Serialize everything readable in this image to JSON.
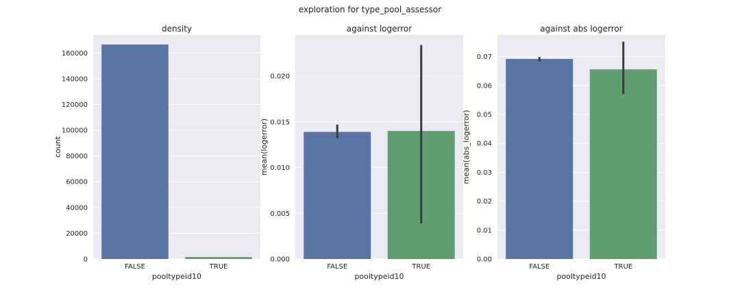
{
  "figure": {
    "suptitle": "exploration for type_pool_assessor"
  },
  "colors": {
    "background": "#eaeaf2",
    "grid": "#ffffff",
    "error_bar": "#3a3a3a",
    "text": "#222222"
  },
  "chart_data": [
    {
      "type": "bar",
      "title": "density",
      "xlabel": "pooltypeid10",
      "ylabel": "count",
      "categories": [
        "FALSE",
        "TRUE"
      ],
      "values": [
        166600,
        1500
      ],
      "colors": [
        "#5875a4",
        "#5f9e6e"
      ],
      "ylim": [
        0,
        174000
      ],
      "yticks": [
        0,
        20000,
        40000,
        60000,
        80000,
        100000,
        120000,
        140000,
        160000
      ],
      "ytick_labels": [
        "0",
        "20000",
        "40000",
        "60000",
        "80000",
        "100000",
        "120000",
        "140000",
        "160000"
      ],
      "grid": true
    },
    {
      "type": "bar",
      "title": "against logerror",
      "xlabel": "pooltypeid10",
      "ylabel": "mean(logerror)",
      "categories": [
        "FALSE",
        "TRUE"
      ],
      "values": [
        0.0139,
        0.014
      ],
      "error_low": [
        0.0132,
        0.0039
      ],
      "error_high": [
        0.0147,
        0.0234
      ],
      "colors": [
        "#5875a4",
        "#5f9e6e"
      ],
      "ylim": [
        0,
        0.0245
      ],
      "yticks": [
        0,
        0.005,
        0.01,
        0.015,
        0.02
      ],
      "ytick_labels": [
        "0.000",
        "0.005",
        "0.010",
        "0.015",
        "0.020"
      ],
      "grid": true
    },
    {
      "type": "bar",
      "title": "against abs logerror",
      "xlabel": "pooltypeid10",
      "ylabel": "mean(abs_logerror)",
      "categories": [
        "FALSE",
        "TRUE"
      ],
      "values": [
        0.0692,
        0.0656
      ],
      "error_low": [
        0.0684,
        0.0571
      ],
      "error_high": [
        0.0699,
        0.0752
      ],
      "colors": [
        "#5875a4",
        "#5f9e6e"
      ],
      "ylim": [
        0,
        0.0775
      ],
      "yticks": [
        0,
        0.01,
        0.02,
        0.03,
        0.04,
        0.05,
        0.06,
        0.07
      ],
      "ytick_labels": [
        "0.00",
        "0.01",
        "0.02",
        "0.03",
        "0.04",
        "0.05",
        "0.06",
        "0.07"
      ],
      "grid": true
    }
  ]
}
